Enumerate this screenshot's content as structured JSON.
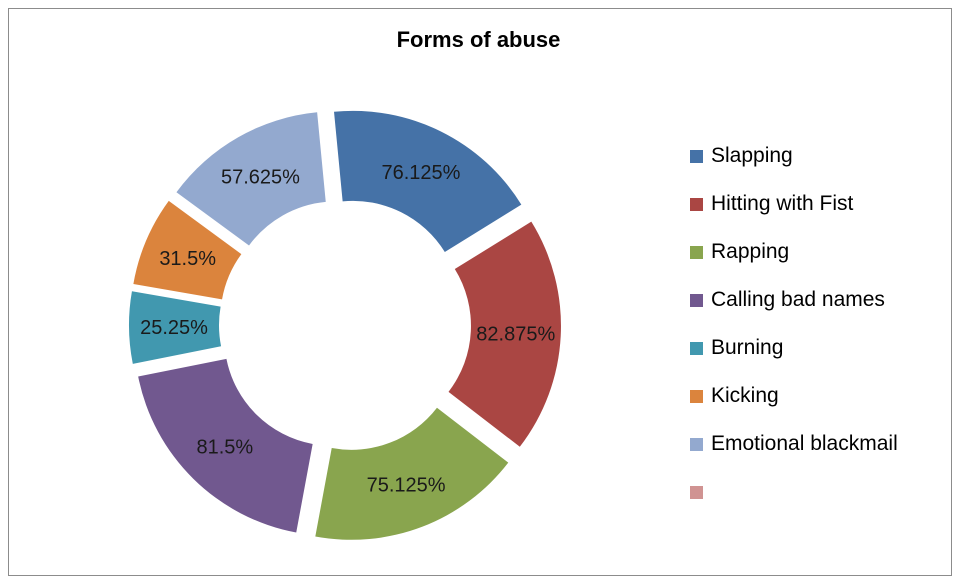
{
  "chart_data": {
    "type": "pie",
    "variant": "exploded-doughnut",
    "title": "Forms of abuse",
    "categories": [
      "Slapping",
      "Hitting with Fist",
      "Rapping",
      "Calling bad names",
      "Burning",
      "Kicking",
      "Emotional blackmail",
      ""
    ],
    "values": [
      76.125,
      82.875,
      75.125,
      81.5,
      25.25,
      31.5,
      57.625,
      0
    ],
    "labels": [
      "76.125%",
      "82.875%",
      "75.125%",
      "81.5%",
      "25.25%",
      "31.5%",
      "57.625%",
      ""
    ],
    "colors": [
      "#4572a7",
      "#aa4643",
      "#89a54e",
      "#71588f",
      "#4198af",
      "#db843d",
      "#93a9cf",
      "#d09392"
    ],
    "legend_position": "right",
    "grid": false
  }
}
